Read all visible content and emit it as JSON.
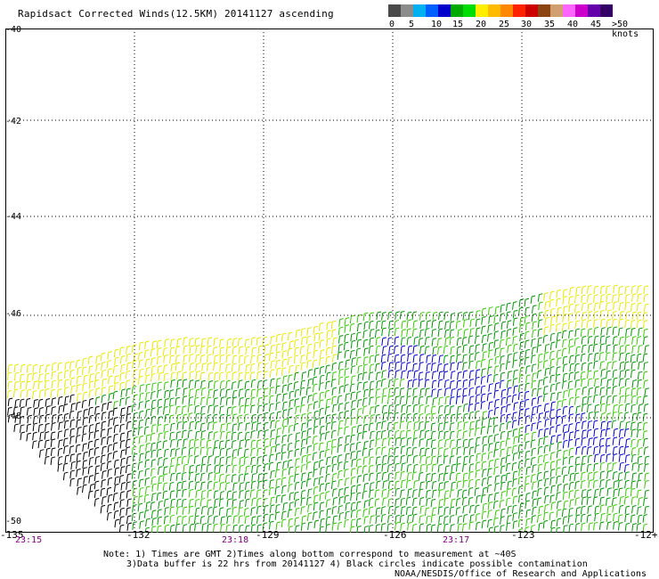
{
  "title": "Rapidsact Corrected Winds(12.5KM) 20141127 ascending",
  "color_scale": {
    "colors": [
      "#4a4a4a",
      "#8c8c8c",
      "#00b0f0",
      "#0060ff",
      "#0000cc",
      "#00aa00",
      "#00dd00",
      "#ffee00",
      "#ffbb00",
      "#ff8800",
      "#ff2200",
      "#cc0000",
      "#8b4513",
      "#d2a070",
      "#ff66ff",
      "#cc00cc",
      "#6600aa",
      "#330066"
    ],
    "labels": [
      "0",
      "5",
      "10",
      "15",
      "20",
      "25",
      "30",
      "35",
      "40",
      "45",
      ">50 knots"
    ]
  },
  "axes": {
    "lat_labels": [
      "-40",
      "-42",
      "-44",
      "-46",
      "-48",
      "-50"
    ],
    "lon_labels": [
      "-135",
      "-132",
      "-129",
      "-126",
      "-123",
      "-12+"
    ],
    "time_labels": [
      "23:15",
      "23:18",
      "23:17"
    ]
  },
  "notes": {
    "line1": "Note: 1) Times are GMT 2)Times along bottom correspond to measurement at ~40S",
    "line2": "3)Data buffer is 22 hrs from 20141127 4) Black circles indicate possible contamination",
    "credit": "NOAA/NESDIS/Office of Research and Applications"
  },
  "wind_colors": {
    "black": "#000000",
    "blue": "#0000cc",
    "green_dark": "#009900",
    "green_light": "#33cc00",
    "yellow": "#e8e800"
  }
}
